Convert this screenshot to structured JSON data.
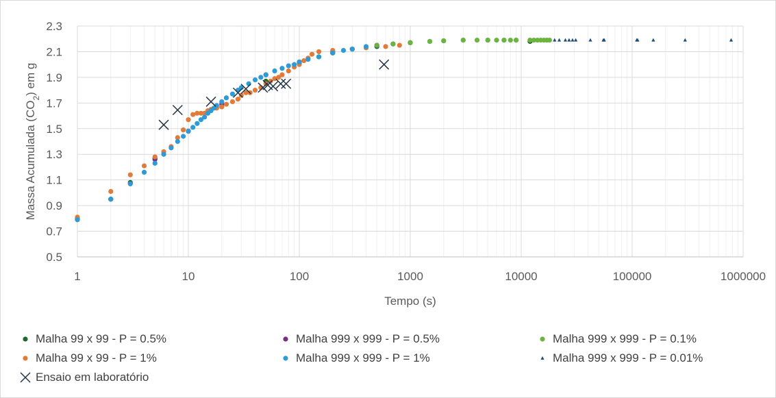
{
  "chart_data": {
    "type": "scatter",
    "title": "",
    "xlabel": "Tempo (s)",
    "ylabel": "Massa Acumulada (CO2) em g",
    "x_scale": "log",
    "xlim": [
      1,
      1000000
    ],
    "ylim": [
      0.5,
      2.3
    ],
    "x_ticks": [
      "1",
      "10",
      "100",
      "1000",
      "10000",
      "100000",
      "1000000"
    ],
    "y_ticks": [
      "0.5",
      "0.7",
      "0.9",
      "1.1",
      "1.3",
      "1.5",
      "1.7",
      "1.9",
      "2.1",
      "2.3"
    ],
    "grid": true,
    "legend_position": "bottom",
    "series": [
      {
        "name": "Malha 99 x 99  - P = 0.5%",
        "color": "#1e6b2e",
        "marker": "circle",
        "x": [
          1,
          2,
          3,
          5,
          10,
          20,
          50,
          100,
          150,
          200,
          300,
          500,
          700,
          1000,
          12000
        ],
        "y": [
          0.8,
          0.95,
          1.08,
          1.27,
          1.48,
          1.67,
          1.87,
          2.01,
          2.06,
          2.09,
          2.12,
          2.14,
          2.16,
          2.17,
          2.18
        ]
      },
      {
        "name": "Malha 999 x 999  - P = 0.5%",
        "color": "#7b2c82",
        "marker": "circle",
        "x": [
          1,
          2,
          3,
          5,
          10,
          20,
          50,
          100,
          200,
          500,
          1000
        ],
        "y": [
          0.79,
          0.95,
          1.07,
          1.26,
          1.48,
          1.69,
          1.92,
          2.02,
          2.1,
          2.15,
          2.17
        ]
      },
      {
        "name": "Malha 999 x 999  - P = 0.1%",
        "color": "#6cb33f",
        "marker": "circle",
        "x": [
          500,
          700,
          1000,
          1500,
          2000,
          3000,
          4000,
          5000,
          6000,
          7000,
          8000,
          9000,
          12000,
          13000,
          14000,
          15000,
          16000,
          17000,
          18000
        ],
        "y": [
          2.15,
          2.16,
          2.17,
          2.18,
          2.185,
          2.19,
          2.19,
          2.19,
          2.19,
          2.19,
          2.19,
          2.19,
          2.19,
          2.19,
          2.19,
          2.19,
          2.19,
          2.19,
          2.19
        ]
      },
      {
        "name": "Malha 99 x 99  - P = 1%",
        "color": "#e07b39",
        "marker": "circle",
        "x": [
          1,
          2,
          3,
          4,
          5,
          6,
          7,
          8,
          9,
          10,
          11,
          12,
          13,
          14,
          15,
          16,
          18,
          20,
          22,
          25,
          28,
          30,
          33,
          36,
          40,
          45,
          50,
          55,
          60,
          65,
          70,
          80,
          90,
          100,
          110,
          120,
          130,
          150,
          200,
          300,
          400,
          600,
          800,
          1000
        ],
        "y": [
          0.81,
          1.01,
          1.14,
          1.21,
          1.28,
          1.32,
          1.36,
          1.43,
          1.49,
          1.57,
          1.61,
          1.62,
          1.62,
          1.62,
          1.64,
          1.65,
          1.66,
          1.67,
          1.69,
          1.71,
          1.73,
          1.76,
          1.78,
          1.78,
          1.8,
          1.82,
          1.85,
          1.87,
          1.89,
          1.9,
          1.92,
          1.95,
          1.98,
          2.0,
          2.03,
          2.05,
          2.08,
          2.1,
          2.11,
          2.12,
          2.13,
          2.14,
          2.15,
          2.17
        ]
      },
      {
        "name": "Malha 999 x 999  - P = 1%",
        "color": "#2e9bd6",
        "marker": "circle",
        "x": [
          1,
          2,
          3,
          4,
          5,
          6,
          7,
          8,
          9,
          10,
          11,
          12,
          13,
          14,
          15,
          16,
          17,
          18,
          20,
          22,
          25,
          28,
          30,
          35,
          40,
          45,
          50,
          60,
          70,
          80,
          90,
          100,
          120,
          150,
          200,
          250,
          300,
          400,
          500,
          700,
          1000,
          1500,
          2000,
          3000,
          5000,
          7000,
          9000
        ],
        "y": [
          0.79,
          0.95,
          1.07,
          1.16,
          1.23,
          1.3,
          1.35,
          1.4,
          1.44,
          1.48,
          1.51,
          1.54,
          1.57,
          1.59,
          1.62,
          1.64,
          1.66,
          1.68,
          1.71,
          1.74,
          1.77,
          1.8,
          1.82,
          1.85,
          1.88,
          1.9,
          1.92,
          1.95,
          1.97,
          1.99,
          2.0,
          2.02,
          2.04,
          2.06,
          2.09,
          2.11,
          2.12,
          2.14,
          2.15,
          2.16,
          2.17,
          2.18,
          2.185,
          2.19,
          2.19,
          2.19,
          2.19
        ]
      },
      {
        "name": "Malha 999 x 999  - P = 0.01%",
        "color": "#1f4e79",
        "marker": "triangle",
        "x": [
          20000,
          22000,
          25000,
          27000,
          29000,
          31000,
          42000,
          55000,
          56000,
          110000,
          112000,
          155000,
          300000,
          780000
        ],
        "y": [
          2.19,
          2.19,
          2.19,
          2.19,
          2.19,
          2.19,
          2.19,
          2.19,
          2.19,
          2.19,
          2.19,
          2.19,
          2.19,
          2.19
        ]
      },
      {
        "name": "Ensaio em laboratório",
        "color": "#243447",
        "marker": "x",
        "x": [
          6,
          8,
          16,
          28,
          33,
          47,
          52,
          58,
          68,
          76,
          580
        ],
        "y": [
          1.53,
          1.645,
          1.71,
          1.78,
          1.81,
          1.82,
          1.84,
          1.83,
          1.85,
          1.85,
          2.0
        ]
      }
    ]
  }
}
